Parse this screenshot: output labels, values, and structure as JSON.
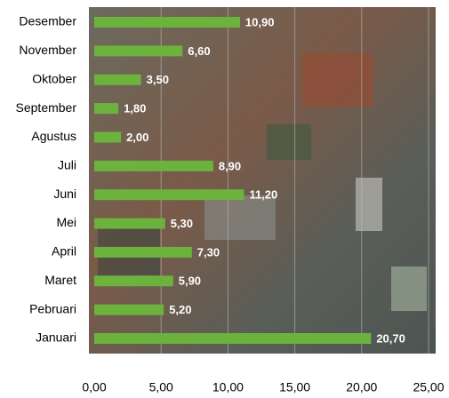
{
  "chart_data": {
    "type": "hbar",
    "categories": [
      "Januari",
      "Pebruari",
      "Maret",
      "April",
      "Mei",
      "Juni",
      "Juli",
      "Agustus",
      "September",
      "Oktober",
      "November",
      "Desember"
    ],
    "values": [
      20.7,
      5.2,
      5.9,
      7.3,
      5.3,
      11.2,
      8.9,
      2.0,
      1.8,
      3.5,
      6.6,
      10.9
    ],
    "value_labels": [
      "20,70",
      "5,20",
      "5,90",
      "7,30",
      "5,30",
      "11,20",
      "8,90",
      "2,00",
      "1,80",
      "3,50",
      "6,60",
      "10,90"
    ],
    "color": "#6cb33e",
    "xlim": [
      0,
      25
    ],
    "xticks": [
      {
        "value": 0,
        "label": "0,00"
      },
      {
        "value": 5,
        "label": "5,00"
      },
      {
        "value": 10,
        "label": "10,00"
      },
      {
        "value": 15,
        "label": "15,00"
      },
      {
        "value": 20,
        "label": "20,00"
      },
      {
        "value": 25,
        "label": "25,00"
      }
    ],
    "grid": true
  }
}
